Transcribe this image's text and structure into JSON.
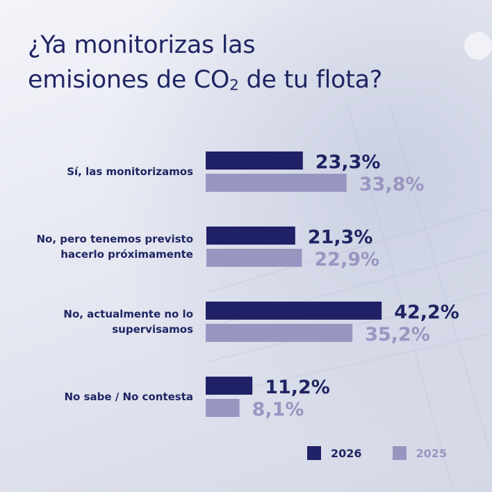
{
  "title": {
    "line1": "¿Ya monitorizas las",
    "line2_before": "emisiones de CO",
    "line2_sub": "2",
    "line2_after": " de tu flota?"
  },
  "colors": {
    "series_2026": "#1f2066",
    "series_2025": "#9896c1"
  },
  "chart_data": {
    "type": "bar",
    "orientation": "horizontal",
    "categories": [
      [
        "Sí, las monitorizamos"
      ],
      [
        "No, pero tenemos previsto",
        "hacerlo próximamente"
      ],
      [
        "No, actualmente no lo",
        "supervisamos"
      ],
      [
        "No sabe / No contesta"
      ]
    ],
    "series": [
      {
        "name": "2026",
        "values": [
          23.3,
          21.3,
          42.2,
          11.2
        ],
        "labels": [
          "23,3%",
          "21,3%",
          "42,2%",
          "11,2%"
        ]
      },
      {
        "name": "2025",
        "values": [
          33.8,
          22.9,
          35.2,
          8.1
        ],
        "labels": [
          "33,8%",
          "22,9%",
          "35,2%",
          "8,1%"
        ]
      }
    ],
    "legend_position": "bottom-right",
    "grid": false
  }
}
